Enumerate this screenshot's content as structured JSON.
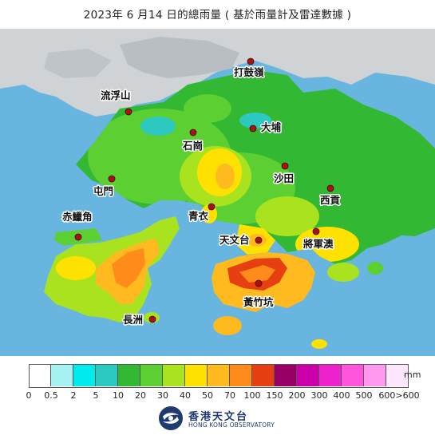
{
  "title": "2023年  6  月14 日的總雨量 ( 基於雨量計及雷達數據 )",
  "map": {
    "places": [
      {
        "id": "da-gu-ling",
        "label": "打鼓嶺"
      },
      {
        "id": "lau-fau-shan",
        "label": "流浮山"
      },
      {
        "id": "shek-kong",
        "label": "石崗"
      },
      {
        "id": "tai-po",
        "label": "大埔"
      },
      {
        "id": "tuen-mun",
        "label": "屯門"
      },
      {
        "id": "sha-tin",
        "label": "沙田"
      },
      {
        "id": "sai-kung",
        "label": "西貢"
      },
      {
        "id": "chek-lap-kok",
        "label": "赤鱲角"
      },
      {
        "id": "tsing-yi",
        "label": "青衣"
      },
      {
        "id": "tian-wen-tai",
        "label": "天文台"
      },
      {
        "id": "tseung-kwan-o",
        "label": "將軍澳"
      },
      {
        "id": "wong-chuk-hang",
        "label": "黃竹坑"
      },
      {
        "id": "cheung-chau",
        "label": "長洲"
      }
    ]
  },
  "legend": {
    "unit": "mm",
    "colors": [
      "#ffffff",
      "#a6f2f2",
      "#00ecec",
      "#2cc9c0",
      "#33b833",
      "#5ccf32",
      "#a9e21f",
      "#ffe100",
      "#ffba1f",
      "#ff8c1a",
      "#e64012",
      "#990066",
      "#cc00aa",
      "#ee22cc",
      "#ff55dd",
      "#ff99ee",
      "#ffe6ff"
    ],
    "ticks": [
      "0",
      "0.5",
      "2",
      "5",
      "10",
      "20",
      "30",
      "40",
      "50",
      "70",
      "100",
      "150",
      "200",
      "300",
      "400",
      "500",
      "600>600"
    ]
  },
  "logo": {
    "name_cn": "香港天文台",
    "name_en": "HONG KONG OBSERVATORY"
  }
}
